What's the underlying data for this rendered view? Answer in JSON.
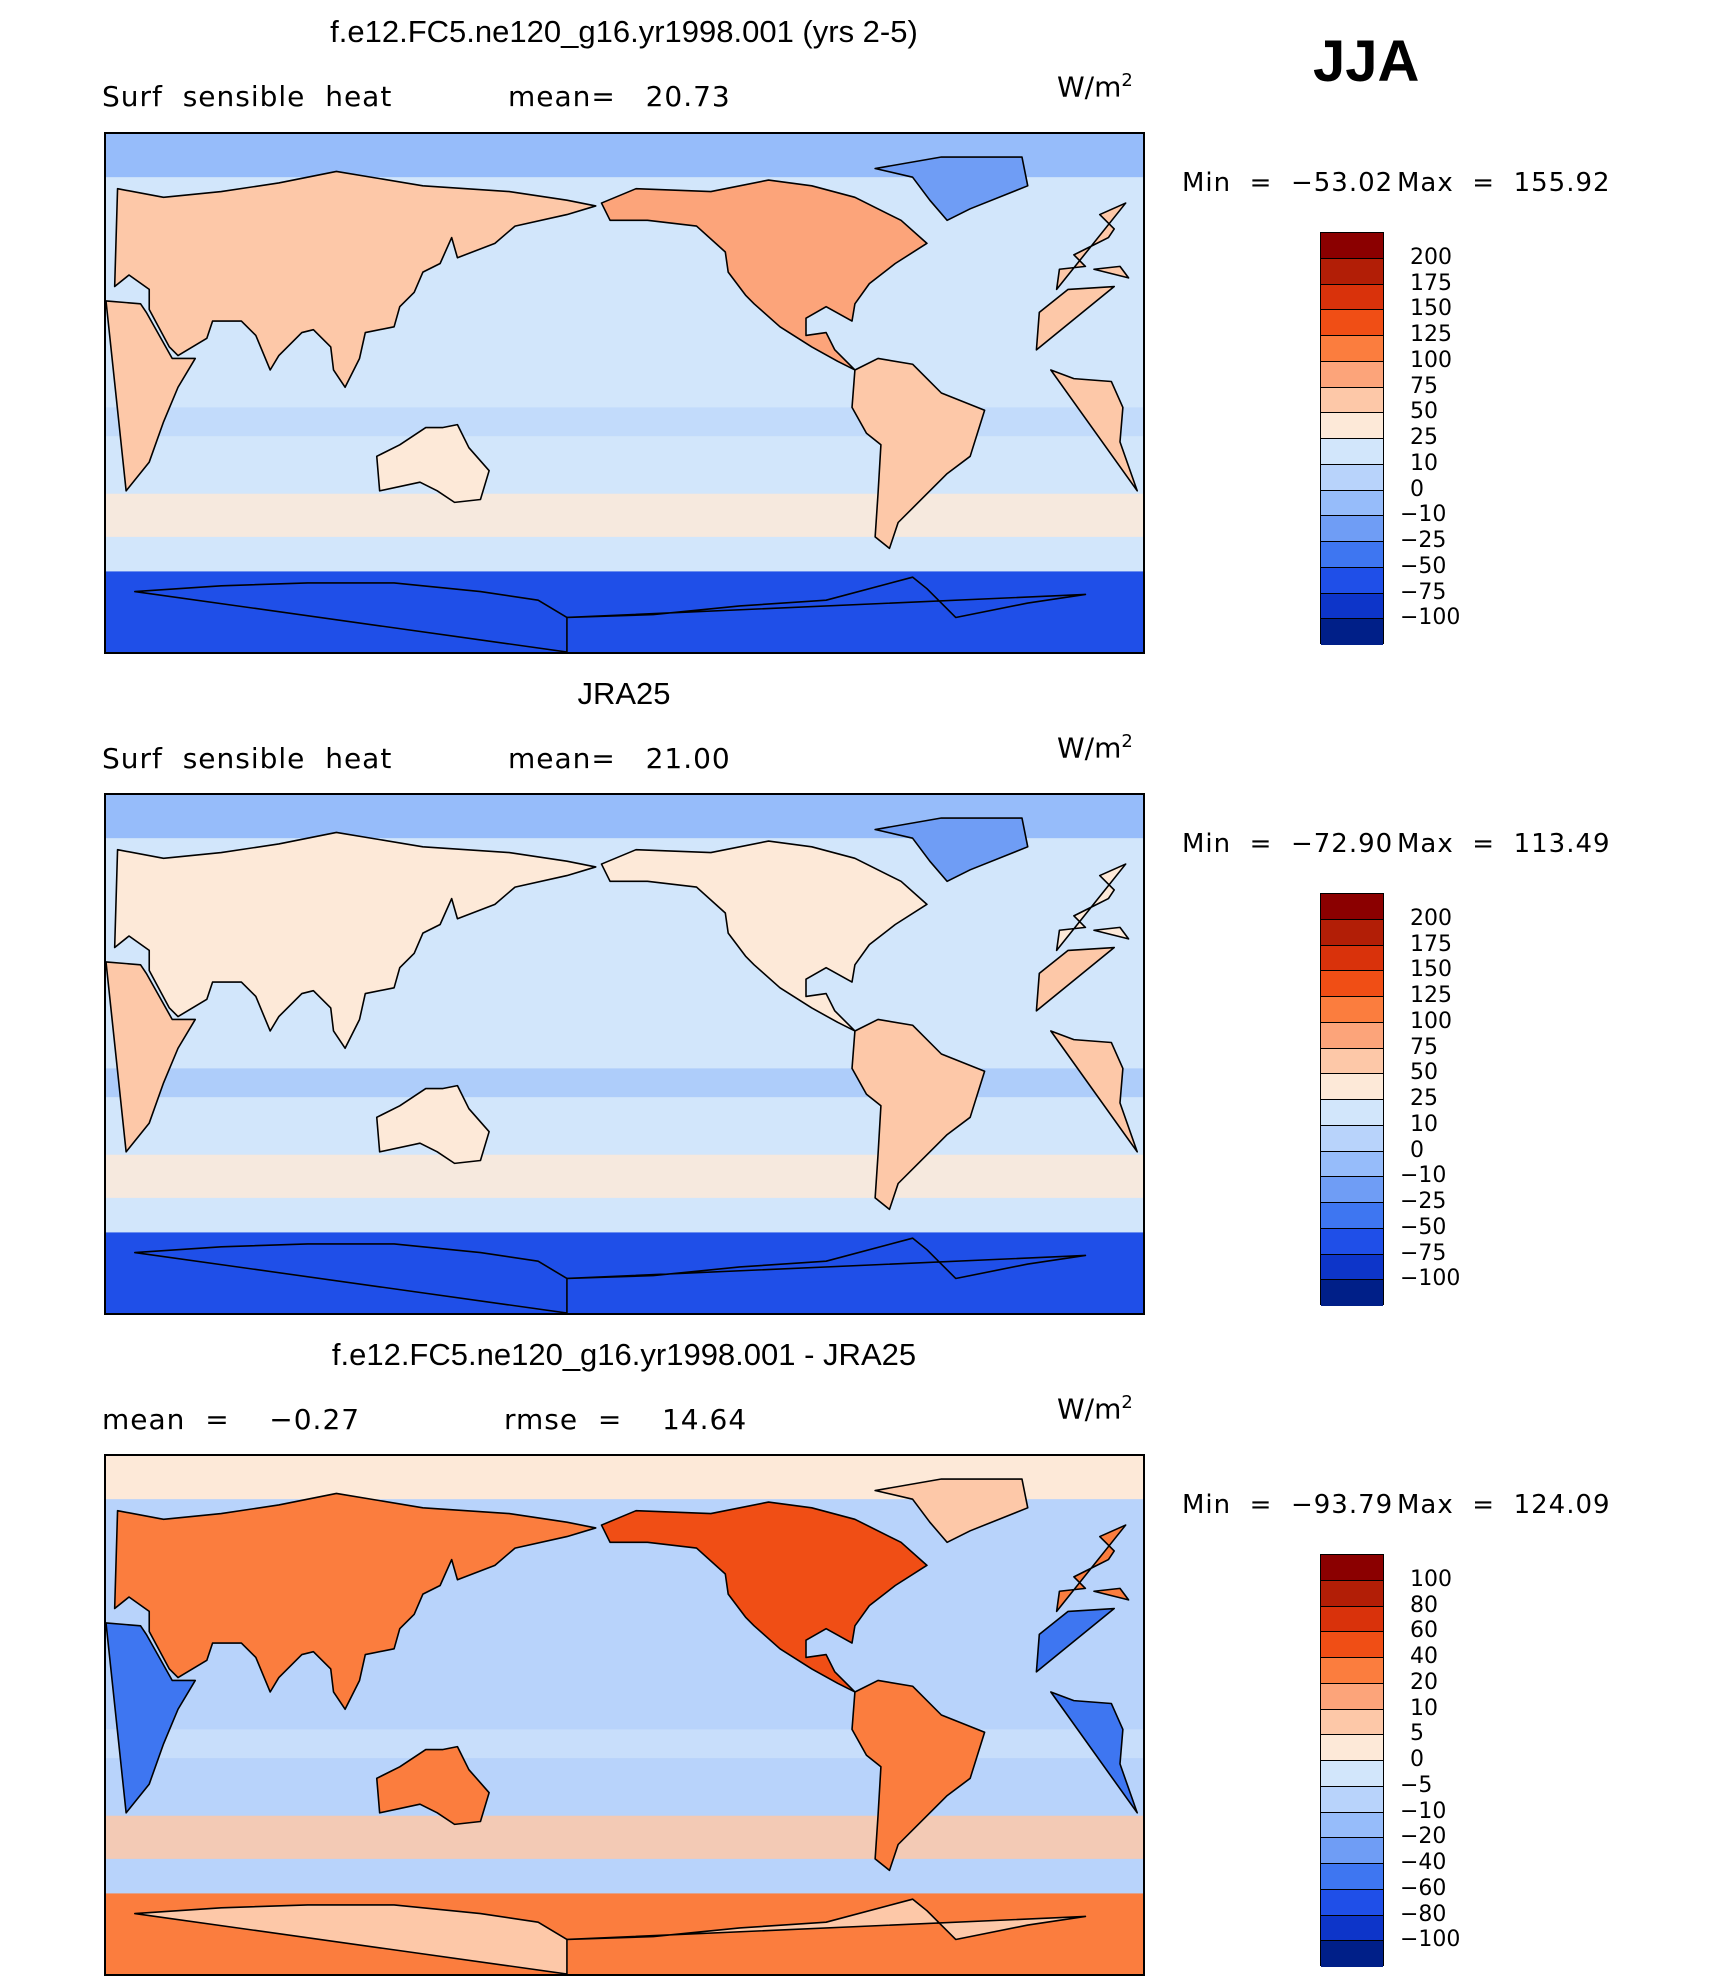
{
  "season": "JJA",
  "units_base": "W/m",
  "units_exp": "2",
  "chart_data": [
    {
      "type": "heatmap",
      "title": "f.e12.FC5.ne120_g16.yr1998.001 (yrs 2-5)",
      "variable": "Surf  sensible  heat",
      "stat_left": "mean=   20.73",
      "min_text": "Min  =  −53.02",
      "max_text": "Max  =  155.92",
      "min": -53.02,
      "max": 155.92,
      "mean": 20.73,
      "levels": [
        "200",
        "175",
        "150",
        "125",
        "100",
        "75",
        "50",
        "25",
        "10",
        "0",
        "−10",
        "−25",
        "−50",
        "−75",
        "−100"
      ],
      "colors": [
        "#8b0000",
        "#b21e06",
        "#d9320b",
        "#f04e15",
        "#fb7d3e",
        "#fca47a",
        "#fdc8a8",
        "#fde9d8",
        "#d2e6fb",
        "#b8d3fb",
        "#96bcfa",
        "#6f9df5",
        "#3e76f1",
        "#1f4fe8",
        "#0d35c9",
        "#001f88"
      ]
    },
    {
      "type": "heatmap",
      "title": "JRA25",
      "variable": "Surf  sensible  heat",
      "stat_left": "mean=   21.00",
      "min_text": "Min  =  −72.90",
      "max_text": "Max  =  113.49",
      "min": -72.9,
      "max": 113.49,
      "mean": 21.0,
      "levels": [
        "200",
        "175",
        "150",
        "125",
        "100",
        "75",
        "50",
        "25",
        "10",
        "0",
        "−10",
        "−25",
        "−50",
        "−75",
        "−100"
      ],
      "colors": [
        "#8b0000",
        "#b21e06",
        "#d9320b",
        "#f04e15",
        "#fb7d3e",
        "#fca47a",
        "#fdc8a8",
        "#fde9d8",
        "#d2e6fb",
        "#b8d3fb",
        "#96bcfa",
        "#6f9df5",
        "#3e76f1",
        "#1f4fe8",
        "#0d35c9",
        "#001f88"
      ]
    },
    {
      "type": "heatmap",
      "title": "f.e12.FC5.ne120_g16.yr1998.001 - JRA25",
      "variable": "mean  =    −0.27",
      "stat_left": "rmse  =    14.64",
      "min_text": "Min  =  −93.79",
      "max_text": "Max  =  124.09",
      "min": -93.79,
      "max": 124.09,
      "mean": -0.27,
      "rmse": 14.64,
      "levels": [
        "100",
        "80",
        "60",
        "40",
        "20",
        "10",
        "5",
        "0",
        "−5",
        "−10",
        "−20",
        "−40",
        "−60",
        "−80",
        "−100"
      ],
      "colors": [
        "#8b0000",
        "#b21e06",
        "#d9320b",
        "#f04e15",
        "#fb7d3e",
        "#fca47a",
        "#fdc8a8",
        "#fde9d8",
        "#d2e6fb",
        "#b8d3fb",
        "#96bcfa",
        "#6f9df5",
        "#3e76f1",
        "#1f4fe8",
        "#0d35c9",
        "#001f88"
      ]
    }
  ]
}
